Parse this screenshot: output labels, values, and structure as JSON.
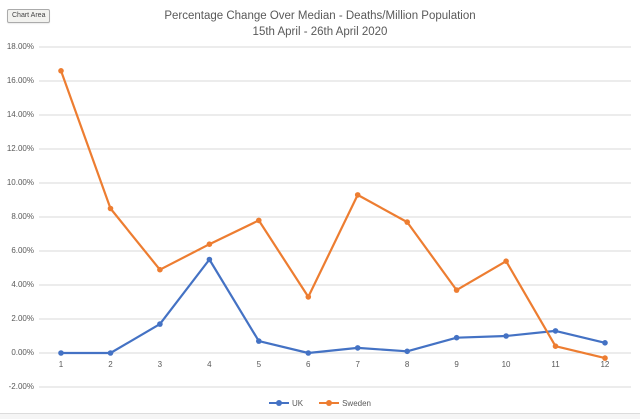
{
  "tooltip": {
    "label": "Chart Area"
  },
  "chart_data": {
    "type": "line",
    "title": "Percentage Change Over Median - Deaths/Million Population",
    "subtitle": "15th April - 26th April 2020",
    "categories": [
      "1",
      "2",
      "3",
      "4",
      "5",
      "6",
      "7",
      "8",
      "9",
      "10",
      "11",
      "12"
    ],
    "series": [
      {
        "name": "UK",
        "color": "#4472C4",
        "values": [
          0.0,
          0.0,
          1.7,
          5.5,
          0.7,
          0.0,
          0.3,
          0.1,
          0.9,
          1.0,
          1.3,
          0.6
        ]
      },
      {
        "name": "Sweden",
        "color": "#ED7D31",
        "values": [
          16.6,
          8.5,
          4.9,
          6.4,
          7.8,
          3.3,
          9.3,
          7.7,
          3.7,
          5.4,
          0.4,
          -0.3
        ]
      }
    ],
    "ylabel": "",
    "xlabel": "",
    "ylim": [
      -2,
      18
    ],
    "ytick_step": 2,
    "ytick_format": "0.00%",
    "grid": true,
    "legend_position": "bottom",
    "gridline_color": "#D9D9D9",
    "text_color": "#595959"
  }
}
